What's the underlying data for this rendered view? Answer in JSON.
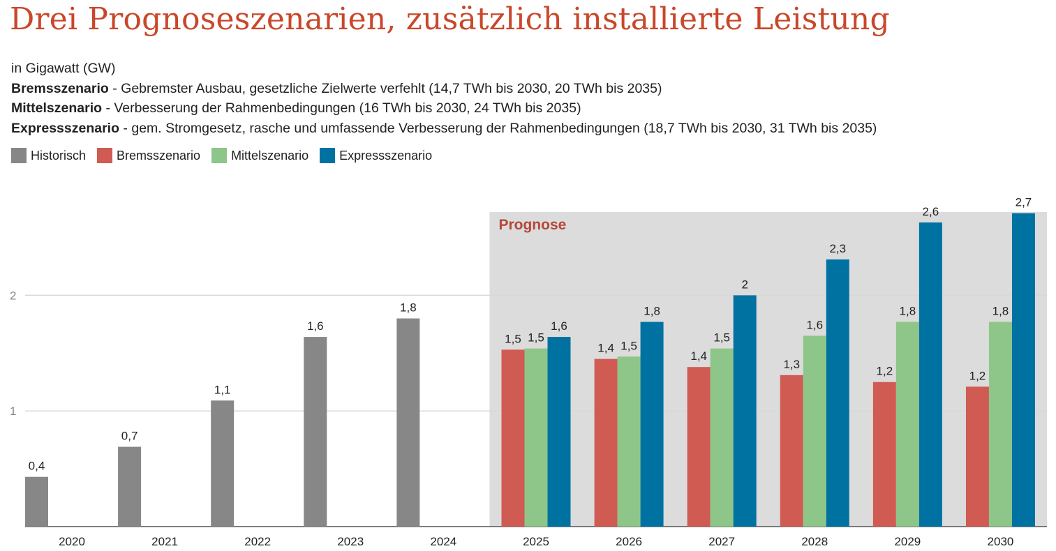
{
  "chart_data": {
    "type": "bar",
    "title": "Drei Prognoseszenarien, zusätzlich installierte Leistung",
    "unit_line": "in Gigawatt (GW)",
    "scenario_descriptions": [
      {
        "name": "Bremsszenario",
        "text": " - Gebremster Ausbau, gesetzliche Zielwerte verfehlt (14,7 TWh bis 2030, 20 TWh bis 2035)"
      },
      {
        "name": "Mittelszenario",
        "text": " - Verbesserung der Rahmenbedingungen (16 TWh bis 2030, 24 TWh bis 2035)"
      },
      {
        "name": "Expressszenario",
        "text": " - gem. Stromgesetz, rasche und umfassende Verbesserung der Rahmenbedingungen (18,7 TWh bis 2030, 31 TWh bis 2035)"
      }
    ],
    "categories": [
      "2020",
      "2021",
      "2022",
      "2023",
      "2024",
      "2025",
      "2026",
      "2027",
      "2028",
      "2029",
      "2030"
    ],
    "series": [
      {
        "name": "Historisch",
        "color": "#878787",
        "values": [
          0.43,
          0.69,
          1.09,
          1.64,
          1.8,
          null,
          null,
          null,
          null,
          null,
          null
        ],
        "labels": [
          "0,4",
          "0,7",
          "1,1",
          "1,6",
          "1,8",
          null,
          null,
          null,
          null,
          null,
          null
        ]
      },
      {
        "name": "Bremsszenario",
        "color": "#d05b53",
        "values": [
          null,
          null,
          null,
          null,
          null,
          1.53,
          1.45,
          1.38,
          1.31,
          1.25,
          1.21
        ],
        "labels": [
          null,
          null,
          null,
          null,
          null,
          "1,5",
          "1,4",
          "1,4",
          "1,3",
          "1,2",
          "1,2"
        ]
      },
      {
        "name": "Mittelszenario",
        "color": "#8ec689",
        "values": [
          null,
          null,
          null,
          null,
          null,
          1.54,
          1.47,
          1.54,
          1.65,
          1.77,
          1.77
        ],
        "labels": [
          null,
          null,
          null,
          null,
          null,
          "1,5",
          "1,5",
          "1,5",
          "1,6",
          "1,8",
          "1,8"
        ]
      },
      {
        "name": "Expressszenario",
        "color": "#0072a2",
        "values": [
          null,
          null,
          null,
          null,
          null,
          1.64,
          1.77,
          2.0,
          2.31,
          2.63,
          2.71
        ],
        "labels": [
          null,
          null,
          null,
          null,
          null,
          "1,6",
          "1,8",
          "2",
          "2,3",
          "2,6",
          "2,7"
        ]
      }
    ],
    "y_ticks": [
      {
        "value": 1,
        "label": "1"
      },
      {
        "value": 2,
        "label": "2"
      }
    ],
    "ylim": [
      0,
      2.72
    ],
    "forecast_region": {
      "label": "Prognose",
      "from_category": "2025",
      "to_category": "2030",
      "color": "#dcdcdc"
    },
    "legend_position": "top-left",
    "grid": true
  }
}
